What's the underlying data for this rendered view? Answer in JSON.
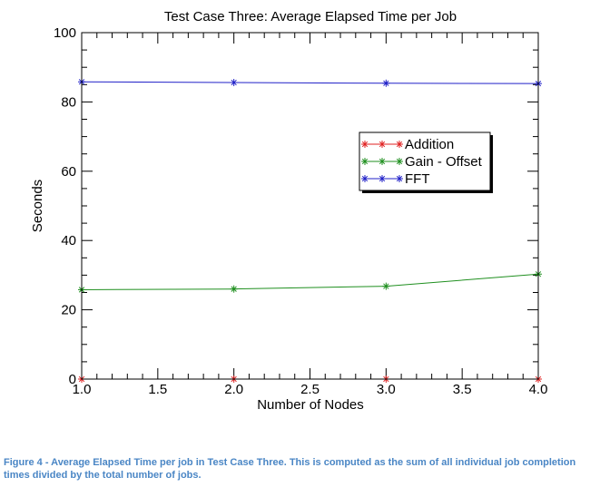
{
  "caption": "Figure 4 - Average Elapsed Time per job in Test Case Three. This is computed as the sum of all individual job completion times divided by the total number of jobs.",
  "colors": {
    "caption": "#4a86c5",
    "axis": "#000000",
    "addition": "#e02020",
    "gain_offset": "#1f8f1f",
    "fft": "#2020c8"
  },
  "chart_data": {
    "type": "line",
    "title": "Test Case Three: Average Elapsed Time per Job",
    "xlabel": "Number of Nodes",
    "ylabel": "Seconds",
    "xlim": [
      1.0,
      4.0
    ],
    "ylim": [
      0,
      100
    ],
    "x_ticks": [
      "1.0",
      "1.5",
      "2.0",
      "2.5",
      "3.0",
      "3.5",
      "4.0"
    ],
    "y_ticks": [
      "0",
      "20",
      "40",
      "60",
      "80",
      "100"
    ],
    "marker": "star",
    "legend_position": "right-center",
    "x": [
      1.0,
      2.0,
      3.0,
      4.0
    ],
    "series": [
      {
        "name": "Addition",
        "color": "#e02020",
        "values": [
          0.0,
          0.0,
          0.0,
          0.0
        ]
      },
      {
        "name": "Gain - Offset",
        "color": "#1f8f1f",
        "values": [
          25.8,
          26.0,
          26.8,
          30.3
        ]
      },
      {
        "name": "FFT",
        "color": "#2020c8",
        "values": [
          85.8,
          85.6,
          85.4,
          85.3
        ]
      }
    ]
  }
}
